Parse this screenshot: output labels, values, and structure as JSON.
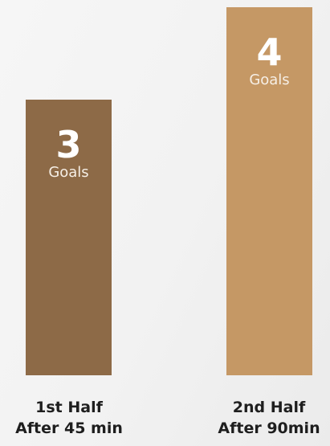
{
  "chart_data": {
    "type": "bar",
    "categories": [
      {
        "line1": "1st Half",
        "line2": "After 45 min"
      },
      {
        "line1": "2nd Half",
        "line2": "After 90min"
      }
    ],
    "values": [
      3,
      4
    ],
    "value_unit": "Goals",
    "ylim": [
      0,
      4
    ],
    "grid": false,
    "legend": "none",
    "colors": [
      "#8d6a47",
      "#c59865"
    ]
  }
}
